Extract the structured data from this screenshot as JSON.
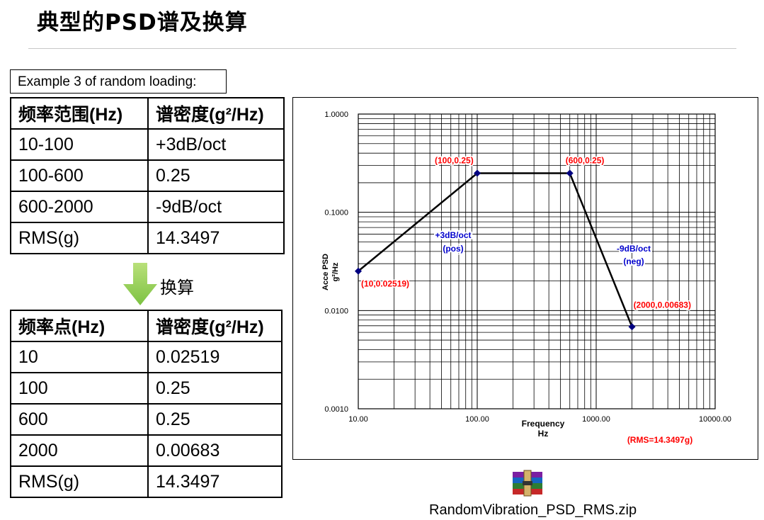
{
  "title": "典型的PSD谱及换算",
  "example_label": "Example 3 of random loading:",
  "table1": {
    "headers": [
      "频率范围(Hz)",
      "谱密度(g²/Hz)"
    ],
    "rows": [
      [
        "10-100",
        "+3dB/oct"
      ],
      [
        "100-600",
        "0.25"
      ],
      [
        "600-2000",
        "-9dB/oct"
      ],
      [
        "RMS(g)",
        "14.3497"
      ]
    ]
  },
  "convert_label": "换算",
  "table2": {
    "headers": [
      "频率点(Hz)",
      "谱密度(g²/Hz)"
    ],
    "rows": [
      [
        "10",
        "0.02519"
      ],
      [
        "100",
        "0.25"
      ],
      [
        "600",
        "0.25"
      ],
      [
        "2000",
        "0.00683"
      ],
      [
        "RMS(g)",
        "14.3497"
      ]
    ]
  },
  "chart_data": {
    "type": "line",
    "xscale": "log",
    "yscale": "log",
    "xlim": [
      10,
      10000
    ],
    "ylim": [
      0.001,
      1
    ],
    "xticks": [
      "10.00",
      "100.00",
      "1000.00",
      "10000.00"
    ],
    "yticks": [
      "0.0010",
      "0.0100",
      "0.1000",
      "1.0000"
    ],
    "xlabel": [
      "Frequency",
      "Hz"
    ],
    "ylabel": [
      "Acce PSD",
      "g²/Hz"
    ],
    "grid": true,
    "line_color": "#000000",
    "marker_color": "#000080",
    "points": [
      {
        "x": 10,
        "y": 0.02519,
        "label": "(10,0.02519)"
      },
      {
        "x": 100,
        "y": 0.25,
        "label": "(100,0.25)"
      },
      {
        "x": 600,
        "y": 0.25,
        "label": "(600,0.25)"
      },
      {
        "x": 2000,
        "y": 0.00683,
        "label": "(2000,0.00683)"
      }
    ],
    "slope_annotations": [
      {
        "line1": "+3dB/oct",
        "line2": "(pos)"
      },
      {
        "line1": "-9dB/oct",
        "line2": "(neg)"
      }
    ],
    "rms_label": "(RMS=14.3497g)",
    "label_color": "#ff0000",
    "annotation_color": "#0000cc"
  },
  "attachment": {
    "icon": "winrar-archive-icon",
    "filename": "RandomVibration_PSD_RMS.zip"
  }
}
